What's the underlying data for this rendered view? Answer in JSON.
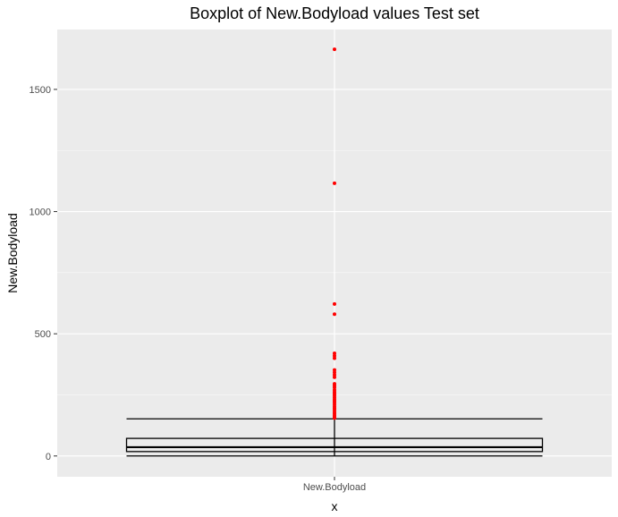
{
  "chart_data": {
    "type": "boxplot",
    "title": "Boxplot of New.Bodyload values Test set",
    "xlabel": "x",
    "ylabel": "New.Bodyload",
    "categories": [
      "New.Bodyload"
    ],
    "ylim": [
      -85,
      1745
    ],
    "yticks": [
      0,
      500,
      1000,
      1500
    ],
    "grid": true,
    "colors": {
      "panel_background": "#ebebeb",
      "grid_major": "#ffffff",
      "box_line": "#000000",
      "outlier": "#ff0000"
    },
    "box": {
      "whisker_low": 0,
      "q1": 18,
      "median": 36,
      "q3": 72,
      "whisker_high": 152
    },
    "outliers": [
      1664,
      1116,
      622,
      580,
      420,
      410,
      400,
      352,
      342,
      332,
      322,
      295,
      288,
      280,
      270,
      262,
      255,
      248,
      240,
      232,
      225,
      218,
      210,
      202,
      195,
      188,
      180,
      173,
      166,
      160,
      155
    ]
  }
}
